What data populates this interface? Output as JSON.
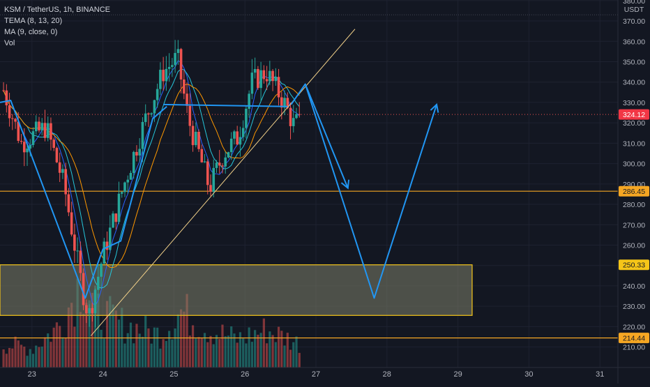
{
  "legend": {
    "symbol_line": "KSM / TetherUS, 1h, BINANCE",
    "tema": "TEMA (8, 13, 20)",
    "ma": "MA (9, close, 0)",
    "vol": "Vol"
  },
  "axis": {
    "currency": "USDT",
    "price_ticks": [
      380,
      370,
      360,
      350,
      340,
      330,
      320,
      310,
      300,
      290,
      280,
      270,
      260,
      250,
      240,
      230,
      220,
      210
    ],
    "price_tick_labels": [
      "380.00",
      "370.00",
      "360.00",
      "350.00",
      "340.00",
      "330.00",
      "320.00",
      "310.00",
      "300.00",
      "290.00",
      "280.00",
      "270.00",
      "260.00",
      "250.00",
      "240.00",
      "230.00",
      "220.00",
      "210.00"
    ],
    "day_ticks": [
      23,
      24,
      25,
      26,
      27,
      28,
      29,
      30,
      31
    ],
    "day_tick_labels": [
      "23",
      "24",
      "25",
      "26",
      "27",
      "28",
      "29",
      "30",
      "31"
    ]
  },
  "price_tags": [
    {
      "label": "324.12",
      "value": 324.12,
      "color": "#f23645",
      "text_color": "#ffffff"
    },
    {
      "label": "286.45",
      "value": 286.45,
      "color": "#f5a623",
      "text_color": "#131722"
    },
    {
      "label": "250.33",
      "value": 250.33,
      "color": "#f5c518",
      "text_color": "#131722"
    },
    {
      "label": "214.44",
      "value": 214.44,
      "color": "#f5a623",
      "text_color": "#131722"
    }
  ],
  "colors": {
    "background": "#131722",
    "up": "#26a69a",
    "down": "#ef5350",
    "projection": "#2196f3",
    "trendline": "#f3d28a",
    "zone_fill": "#7d7f6a",
    "zone_border": "#f5c518",
    "horizontal_line": "#f5a623",
    "grid": "#1e2230"
  },
  "chart_data": {
    "type": "candlestick",
    "symbol": "KSM / TetherUS",
    "interval": "1h",
    "exchange": "BINANCE",
    "x_unit": "day of month",
    "y_unit": "USDT",
    "xlim": [
      22.55,
      31.2
    ],
    "ylim": [
      203,
      383
    ],
    "grid": true,
    "last_price": 324.12,
    "key_price_path": [
      {
        "x": 22.6,
        "y": 336
      },
      {
        "x": 22.85,
        "y": 310
      },
      {
        "x": 23.2,
        "y": 318
      },
      {
        "x": 23.45,
        "y": 290
      },
      {
        "x": 23.7,
        "y": 240
      },
      {
        "x": 23.8,
        "y": 225
      },
      {
        "x": 24.0,
        "y": 255
      },
      {
        "x": 24.3,
        "y": 290
      },
      {
        "x": 24.6,
        "y": 322
      },
      {
        "x": 24.85,
        "y": 345
      },
      {
        "x": 25.05,
        "y": 352
      },
      {
        "x": 25.2,
        "y": 322
      },
      {
        "x": 25.35,
        "y": 305
      },
      {
        "x": 25.5,
        "y": 288
      },
      {
        "x": 25.7,
        "y": 305
      },
      {
        "x": 25.9,
        "y": 313
      },
      {
        "x": 26.1,
        "y": 340
      },
      {
        "x": 26.3,
        "y": 345
      },
      {
        "x": 26.55,
        "y": 330
      },
      {
        "x": 26.7,
        "y": 318
      },
      {
        "x": 26.78,
        "y": 324.12
      }
    ],
    "volume_profile": [
      {
        "x": 22.6,
        "v": 0.25
      },
      {
        "x": 23.0,
        "v": 0.2
      },
      {
        "x": 23.4,
        "v": 0.45
      },
      {
        "x": 23.7,
        "v": 0.95
      },
      {
        "x": 23.9,
        "v": 0.6
      },
      {
        "x": 24.3,
        "v": 0.45
      },
      {
        "x": 24.8,
        "v": 0.35
      },
      {
        "x": 25.1,
        "v": 0.6
      },
      {
        "x": 25.5,
        "v": 0.4
      },
      {
        "x": 25.9,
        "v": 0.3
      },
      {
        "x": 26.3,
        "v": 0.4
      },
      {
        "x": 26.78,
        "v": 0.25
      }
    ],
    "horizontal_levels": [
      286.45,
      214.44
    ],
    "last_price_line": 324.12,
    "top_reference_line": 373,
    "zone": {
      "x_start": 22.55,
      "x_end": 29.2,
      "y_top": 250.33,
      "y_bottom": 225.5
    },
    "rising_trendline": [
      {
        "x": 23.83,
        "y": 215.5
      },
      {
        "x": 27.55,
        "y": 366
      }
    ],
    "neckline": [
      {
        "x": 24.85,
        "y": 329
      },
      {
        "x": 26.6,
        "y": 328
      }
    ],
    "drawn_w_pattern": [
      {
        "x": 22.55,
        "y": 330
      },
      {
        "x": 22.7,
        "y": 331
      },
      {
        "x": 23.75,
        "y": 234
      },
      {
        "x": 24.0,
        "y": 258
      },
      {
        "x": 24.25,
        "y": 262
      },
      {
        "x": 24.7,
        "y": 322
      },
      {
        "x": 24.9,
        "y": 328
      }
    ],
    "projection_down_arrow": [
      {
        "x": 26.65,
        "y": 329
      },
      {
        "x": 26.85,
        "y": 339
      },
      {
        "x": 27.45,
        "y": 288
      }
    ],
    "projection_w_path": [
      {
        "x": 26.85,
        "y": 339
      },
      {
        "x": 27.82,
        "y": 234
      },
      {
        "x": 28.7,
        "y": 329
      }
    ]
  }
}
